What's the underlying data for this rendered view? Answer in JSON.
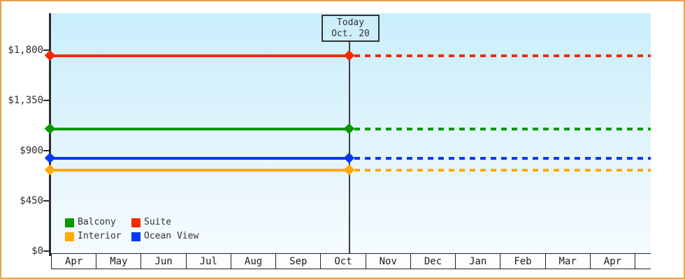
{
  "chart": {
    "y_tick_labels": [
      "$0",
      "$450",
      "$900",
      "$1,350",
      "$1,800"
    ],
    "months": [
      "Apr",
      "May",
      "Jun",
      "Jul",
      "Aug",
      "Sep",
      "Oct",
      "Nov",
      "Dec",
      "Jan",
      "Feb",
      "Mar",
      "Apr"
    ],
    "today_box": {
      "line1": "Today",
      "line2": "Oct. 20"
    },
    "legend": {
      "balcony": "Balcony",
      "suite": "Suite",
      "interior": "Interior",
      "ocean_view": "Ocean View"
    },
    "colors": {
      "balcony": "#0a9800",
      "suite": "#f22a00",
      "interior": "#ffaa00",
      "ocean_view": "#043af0",
      "frame_border": "#e7a452",
      "plot_background_top": "#c9eefb",
      "plot_background_bottom": "#f4fbfe",
      "axis": "#2b2b2b"
    }
  },
  "chart_data": {
    "type": "line",
    "title": "",
    "categories": [
      "Apr",
      "May",
      "Jun",
      "Jul",
      "Aug",
      "Sep",
      "Oct",
      "Nov",
      "Dec",
      "Jan",
      "Feb",
      "Mar",
      "Apr"
    ],
    "series": [
      {
        "name": "Suite",
        "color": "#f22a00",
        "values": [
          1750,
          1750,
          1750,
          1750,
          1750,
          1750,
          1750,
          1750,
          1750,
          1750,
          1750,
          1750,
          1750
        ]
      },
      {
        "name": "Balcony",
        "color": "#0a9800",
        "values": [
          1090,
          1090,
          1090,
          1090,
          1090,
          1090,
          1090,
          1090,
          1090,
          1090,
          1090,
          1090,
          1090
        ]
      },
      {
        "name": "Ocean View",
        "color": "#043af0",
        "values": [
          830,
          830,
          830,
          830,
          830,
          830,
          830,
          830,
          830,
          830,
          830,
          830,
          830
        ]
      },
      {
        "name": "Interior",
        "color": "#ffaa00",
        "values": [
          725,
          725,
          725,
          725,
          725,
          725,
          725,
          725,
          725,
          725,
          725,
          725,
          725
        ]
      }
    ],
    "ylim": [
      0,
      1800
    ],
    "y_ticks": [
      0,
      450,
      900,
      1350,
      1800
    ],
    "y_tick_format": "$ with thousands comma",
    "grid": false,
    "legend_position": "bottom-left inside plot",
    "annotations": [
      {
        "label": "Today Oct. 20",
        "x": "Oct 20",
        "style": "boxed label with vertical line"
      }
    ],
    "style_notes": "Each series is solid from left edge to the Today (Oct. 20) marker, with diamond point markers at the start and at today, then continues as a dotted projection to the right edge."
  }
}
